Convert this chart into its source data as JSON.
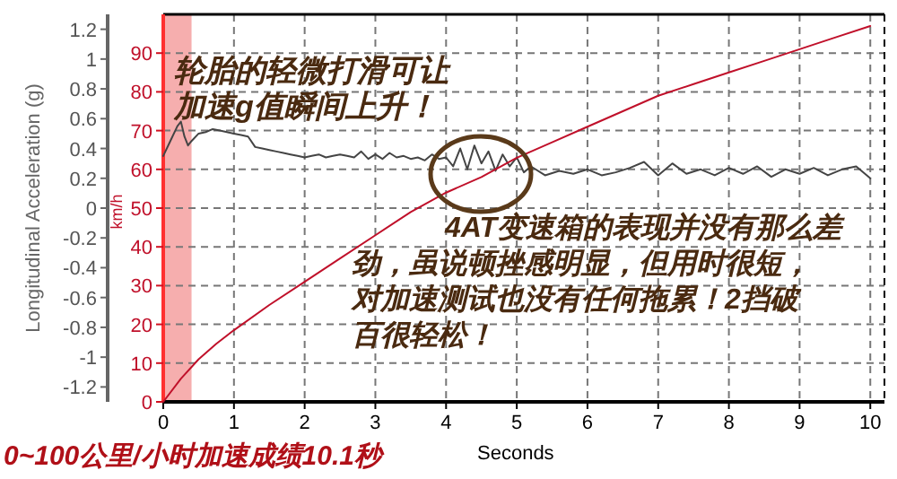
{
  "chart_data": {
    "type": "line",
    "title": "0~100公里/小时加速成绩10.1秒",
    "xlabel": "Seconds",
    "ylabel": "Longitudinal Acceleration (g)",
    "y2label": "km/h",
    "annotations": [
      "轮胎的轻微打滑可让加速g值瞬间上升！",
      "4AT变速箱的表现并没有那么差劲，虽说顿挫感明显，但用时很短，对加速测试也没有任何拖累！2挡破百很轻松！"
    ],
    "xlim": [
      0,
      10.2
    ],
    "xticks": [
      0,
      1,
      2,
      3,
      4,
      5,
      6,
      7,
      8,
      9,
      10
    ],
    "ylim": [
      -1.3,
      1.3
    ],
    "yticks": [
      -1.2,
      -1,
      -0.8,
      -0.6,
      -0.4,
      -0.2,
      0,
      0.2,
      0.4,
      0.6,
      0.8,
      1,
      1.2
    ],
    "y2lim": [
      0,
      100
    ],
    "y2ticks": [
      0,
      10,
      20,
      30,
      40,
      50,
      60,
      70,
      80,
      90
    ],
    "grid": true,
    "line_style": "solid",
    "marker": "none",
    "bands": [
      {
        "axis": "x",
        "from": 0,
        "to": 0.4,
        "color": "#f4a0a0"
      }
    ],
    "series": [
      {
        "color": "#444444",
        "x": [
          0,
          0.1,
          0.2,
          0.25,
          0.3,
          0.35,
          0.4,
          0.5,
          0.6,
          0.7,
          0.8,
          0.9,
          1.0,
          1.1,
          1.2,
          1.3,
          1.4,
          1.5,
          1.6,
          1.7,
          1.8,
          1.9,
          2.0,
          2.1,
          2.2,
          2.3,
          2.4,
          2.5,
          2.6,
          2.7,
          2.8,
          2.9,
          3.0,
          3.1,
          3.2,
          3.3,
          3.4,
          3.5,
          3.6,
          3.7,
          3.8,
          3.9,
          4.0,
          4.1,
          4.2,
          4.3,
          4.4,
          4.5,
          4.6,
          4.7,
          4.8,
          4.9,
          5.0,
          5.1,
          5.2,
          5.4,
          5.6,
          5.8,
          6.0,
          6.2,
          6.4,
          6.6,
          6.8,
          7.0,
          7.2,
          7.4,
          7.6,
          7.8,
          8.0,
          8.2,
          8.4,
          8.6,
          8.8,
          9.0,
          9.2,
          9.4,
          9.6,
          9.8,
          10.0
        ],
        "values": [
          0.35,
          0.45,
          0.55,
          0.58,
          0.48,
          0.42,
          0.45,
          0.5,
          0.51,
          0.53,
          0.52,
          0.51,
          0.5,
          0.49,
          0.48,
          0.41,
          0.4,
          0.39,
          0.38,
          0.37,
          0.36,
          0.35,
          0.34,
          0.35,
          0.36,
          0.34,
          0.35,
          0.36,
          0.35,
          0.34,
          0.38,
          0.33,
          0.36,
          0.33,
          0.37,
          0.34,
          0.35,
          0.33,
          0.34,
          0.32,
          0.36,
          0.33,
          0.34,
          0.28,
          0.4,
          0.26,
          0.42,
          0.3,
          0.38,
          0.25,
          0.36,
          0.28,
          0.34,
          0.24,
          0.28,
          0.22,
          0.25,
          0.23,
          0.26,
          0.22,
          0.24,
          0.27,
          0.31,
          0.22,
          0.3,
          0.23,
          0.26,
          0.22,
          0.27,
          0.23,
          0.28,
          0.21,
          0.26,
          0.23,
          0.27,
          0.22,
          0.26,
          0.28,
          0.2
        ]
      },
      {
        "color": "#c0102a",
        "axis": "y2",
        "x": [
          0,
          0.25,
          0.5,
          0.75,
          1,
          1.5,
          2,
          2.5,
          3,
          3.5,
          4,
          4.5,
          5,
          5.5,
          6,
          6.5,
          7,
          7.5,
          8,
          8.5,
          9,
          9.5,
          10
        ],
        "values": [
          0,
          6,
          11,
          15,
          18.5,
          25,
          31,
          37,
          43,
          49,
          54,
          58,
          63,
          67,
          71,
          75,
          79,
          82,
          85,
          88,
          91,
          94,
          97
        ]
      }
    ]
  }
}
